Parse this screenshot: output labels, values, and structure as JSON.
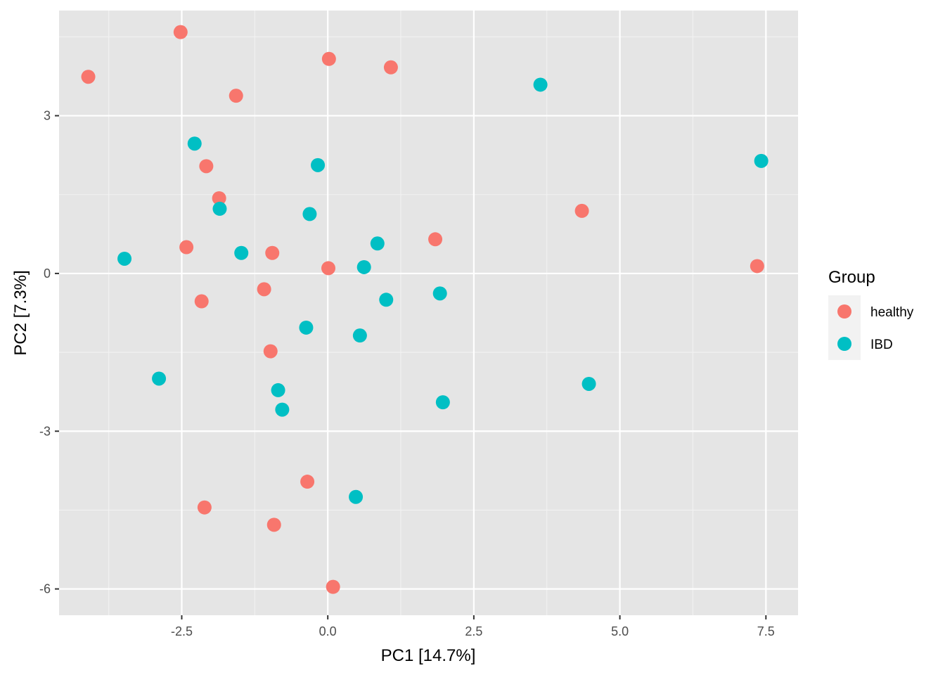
{
  "chart_data": {
    "type": "scatter",
    "title": "",
    "xlabel": "PC1   [14.7%]",
    "ylabel": "PC2   [7.3%]",
    "xlim": [
      -4.6,
      8.05
    ],
    "ylim": [
      -6.5,
      5.0
    ],
    "x_ticks": [
      -2.5,
      0.0,
      2.5,
      5.0,
      7.5
    ],
    "x_tick_labels": [
      "-2.5",
      "0.0",
      "2.5",
      "5.0",
      "7.5"
    ],
    "y_ticks": [
      3,
      0,
      -3,
      -6
    ],
    "y_tick_labels": [
      "3",
      "0",
      "-3",
      "-6"
    ],
    "grid": true,
    "background": "#e5e5e5",
    "legend": {
      "title": "Group",
      "position": "right",
      "entries": [
        {
          "label": "healthy",
          "color": "#f8766d"
        },
        {
          "label": "IBD",
          "color": "#00bfc4"
        }
      ]
    },
    "series": [
      {
        "name": "healthy",
        "color": "#f8766d",
        "points": [
          [
            -4.1,
            3.74
          ],
          [
            -2.52,
            4.59
          ],
          [
            0.02,
            4.08
          ],
          [
            1.08,
            3.92
          ],
          [
            -1.57,
            3.38
          ],
          [
            -2.08,
            2.04
          ],
          [
            -1.86,
            1.43
          ],
          [
            -2.42,
            0.5
          ],
          [
            -0.95,
            0.39
          ],
          [
            0.01,
            0.1
          ],
          [
            1.84,
            0.65
          ],
          [
            4.35,
            1.19
          ],
          [
            7.35,
            0.14
          ],
          [
            -1.09,
            -0.3
          ],
          [
            -2.16,
            -0.53
          ],
          [
            -0.98,
            -1.48
          ],
          [
            -0.35,
            -3.96
          ],
          [
            -2.11,
            -4.45
          ],
          [
            -0.92,
            -4.78
          ],
          [
            0.09,
            -5.96
          ]
        ]
      },
      {
        "name": "IBD",
        "color": "#00bfc4",
        "points": [
          [
            3.64,
            3.59
          ],
          [
            7.42,
            2.14
          ],
          [
            -2.28,
            2.47
          ],
          [
            -0.17,
            2.06
          ],
          [
            -1.85,
            1.23
          ],
          [
            -0.31,
            1.13
          ],
          [
            -3.48,
            0.28
          ],
          [
            -1.48,
            0.39
          ],
          [
            0.85,
            0.57
          ],
          [
            0.62,
            0.12
          ],
          [
            1.0,
            -0.5
          ],
          [
            1.92,
            -0.38
          ],
          [
            -0.37,
            -1.03
          ],
          [
            0.55,
            -1.18
          ],
          [
            -2.89,
            -2.0
          ],
          [
            -0.85,
            -2.22
          ],
          [
            -0.78,
            -2.59
          ],
          [
            1.97,
            -2.45
          ],
          [
            4.47,
            -2.1
          ],
          [
            0.48,
            -4.25
          ]
        ]
      }
    ]
  }
}
